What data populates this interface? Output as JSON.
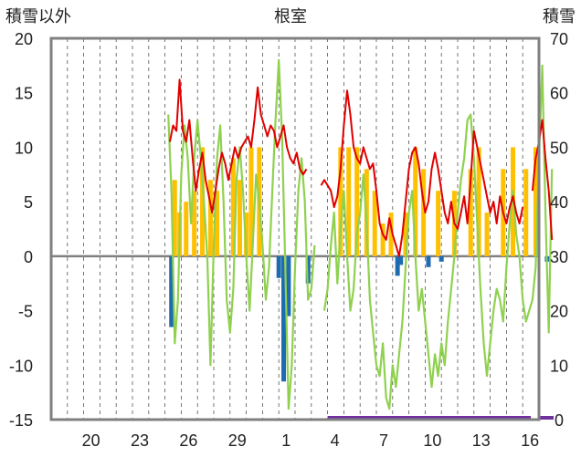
{
  "chart_data": {
    "type": "bar+line",
    "title": "根室",
    "left_axis_title": "積雪以外",
    "right_axis_title": "積雪",
    "left_axis": {
      "min": -15,
      "max": 20,
      "ticks": [
        "20",
        "15",
        "10",
        "5",
        "0",
        "-5",
        "-10",
        "-15"
      ]
    },
    "right_axis": {
      "min": 0,
      "max": 70,
      "ticks": [
        "70",
        "60",
        "50",
        "40",
        "30",
        "20",
        "10",
        "0"
      ]
    },
    "x_ticks": [
      {
        "day": 2,
        "label": "20"
      },
      {
        "day": 5,
        "label": "23"
      },
      {
        "day": 8,
        "label": "26"
      },
      {
        "day": 11,
        "label": "29"
      },
      {
        "day": 14,
        "label": "1"
      },
      {
        "day": 17,
        "label": "4"
      },
      {
        "day": 20,
        "label": "7"
      },
      {
        "day": 23,
        "label": "10"
      },
      {
        "day": 26,
        "label": "13"
      },
      {
        "day": 29,
        "label": "16"
      }
    ],
    "x_range": [
      0,
      30
    ],
    "colors": {
      "red": "#e00000",
      "green": "#8fd14f",
      "orange": "#ffc000",
      "blue": "#1e6bb0",
      "purple": "#7030a0",
      "frame": "#808080"
    },
    "series": [
      {
        "type": "line",
        "axis": "left",
        "color": "red",
        "segments": [
          [
            [
              7.3,
              10.5
            ],
            [
              7.5,
              12
            ],
            [
              7.7,
              11.5
            ],
            [
              7.9,
              16.2
            ],
            [
              8.1,
              11.5
            ],
            [
              8.3,
              10.5
            ],
            [
              8.5,
              12.5
            ],
            [
              8.7,
              9
            ],
            [
              8.9,
              6
            ],
            [
              9.1,
              8
            ],
            [
              9.3,
              9.5
            ],
            [
              9.5,
              7
            ],
            [
              9.7,
              5.5
            ],
            [
              9.9,
              4
            ],
            [
              10.1,
              6
            ],
            [
              10.3,
              8
            ],
            [
              10.5,
              9.5
            ],
            [
              10.7,
              8.5
            ],
            [
              10.9,
              7
            ],
            [
              11.1,
              8.5
            ],
            [
              11.3,
              10
            ],
            [
              11.5,
              9
            ],
            [
              11.7,
              10
            ],
            [
              11.9,
              10.5
            ],
            [
              12.1,
              11
            ],
            [
              12.3,
              10
            ],
            [
              12.5,
              12.5
            ],
            [
              12.7,
              15.5
            ],
            [
              12.9,
              13
            ],
            [
              13.1,
              12
            ],
            [
              13.3,
              11
            ],
            [
              13.5,
              12
            ],
            [
              13.7,
              11.5
            ],
            [
              13.9,
              10
            ],
            [
              14.1,
              11
            ],
            [
              14.3,
              12
            ],
            [
              14.5,
              10
            ],
            [
              14.7,
              9
            ],
            [
              14.9,
              8.5
            ],
            [
              15.1,
              9.5
            ],
            [
              15.3,
              8
            ],
            [
              15.5,
              7.5
            ],
            [
              15.7,
              8
            ]
          ],
          [
            [
              16.6,
              6.5
            ],
            [
              16.8,
              7
            ],
            [
              17.0,
              6.5
            ],
            [
              17.2,
              6
            ],
            [
              17.4,
              4.5
            ],
            [
              17.6,
              5.5
            ],
            [
              17.8,
              8
            ],
            [
              18.0,
              12
            ],
            [
              18.2,
              15.2
            ],
            [
              18.4,
              13
            ],
            [
              18.6,
              10
            ],
            [
              18.8,
              9
            ],
            [
              19.0,
              8.5
            ],
            [
              19.2,
              10
            ],
            [
              19.4,
              9
            ],
            [
              19.6,
              8
            ],
            [
              19.8,
              8.5
            ],
            [
              20.0,
              6
            ],
            [
              20.2,
              3
            ],
            [
              20.4,
              2
            ],
            [
              20.6,
              1.5
            ],
            [
              20.8,
              3.5
            ],
            [
              21.0,
              2
            ],
            [
              21.2,
              1
            ],
            [
              21.4,
              0
            ],
            [
              21.6,
              2
            ],
            [
              21.8,
              5
            ],
            [
              22.0,
              8
            ],
            [
              22.2,
              9.5
            ],
            [
              22.4,
              10
            ],
            [
              22.6,
              8.5
            ],
            [
              22.8,
              6
            ],
            [
              23.0,
              4
            ],
            [
              23.2,
              5
            ],
            [
              23.4,
              8
            ],
            [
              23.6,
              9.5
            ],
            [
              23.8,
              8
            ],
            [
              24.0,
              6
            ],
            [
              24.2,
              4
            ],
            [
              24.4,
              3
            ],
            [
              24.6,
              5
            ],
            [
              24.8,
              3
            ],
            [
              25.0,
              2.5
            ],
            [
              25.2,
              4
            ],
            [
              25.4,
              5.5
            ],
            [
              25.6,
              3
            ],
            [
              25.8,
              7
            ],
            [
              26.0,
              11.5
            ],
            [
              26.2,
              10
            ],
            [
              26.4,
              8.5
            ],
            [
              26.6,
              7
            ],
            [
              26.8,
              5.5
            ],
            [
              27.0,
              4
            ],
            [
              27.2,
              5
            ],
            [
              27.4,
              3
            ],
            [
              27.6,
              5.5
            ],
            [
              27.8,
              4
            ],
            [
              28.0,
              3
            ],
            [
              28.2,
              4.5
            ],
            [
              28.4,
              5.5
            ],
            [
              28.6,
              4
            ],
            [
              28.8,
              3
            ],
            [
              29.0,
              4.5
            ]
          ],
          [
            [
              29.6,
              6
            ],
            [
              29.8,
              9
            ],
            [
              30.0,
              10.5
            ],
            [
              30.2,
              12.5
            ],
            [
              30.4,
              9
            ],
            [
              30.6,
              6
            ],
            [
              30.8,
              1.5
            ]
          ]
        ]
      },
      {
        "type": "line",
        "axis": "right",
        "color": "green",
        "segments": [
          [
            [
              7.2,
              56
            ],
            [
              7.4,
              42
            ],
            [
              7.6,
              14
            ],
            [
              7.8,
              22
            ],
            [
              8.0,
              45
            ],
            [
              8.2,
              54
            ],
            [
              8.4,
              48
            ],
            [
              8.6,
              36
            ],
            [
              8.8,
              48
            ],
            [
              9.0,
              55
            ],
            [
              9.2,
              48
            ],
            [
              9.4,
              40
            ],
            [
              9.6,
              30
            ],
            [
              9.8,
              10
            ],
            [
              10.0,
              32
            ],
            [
              10.2,
              48
            ],
            [
              10.4,
              54
            ],
            [
              10.6,
              40
            ],
            [
              10.8,
              22
            ],
            [
              11.0,
              16
            ],
            [
              11.2,
              24
            ],
            [
              11.4,
              44
            ],
            [
              11.6,
              50
            ],
            [
              11.8,
              42
            ],
            [
              12.0,
              30
            ],
            [
              12.2,
              20
            ],
            [
              12.4,
              32
            ],
            [
              12.6,
              45
            ],
            [
              12.8,
              40
            ],
            [
              13.0,
              32
            ],
            [
              13.2,
              22
            ],
            [
              13.4,
              28
            ],
            [
              13.6,
              42
            ],
            [
              13.8,
              55
            ],
            [
              14.0,
              66
            ],
            [
              14.2,
              52
            ],
            [
              14.4,
              28
            ],
            [
              14.6,
              2
            ],
            [
              14.8,
              10
            ],
            [
              15.0,
              28
            ],
            [
              15.2,
              42
            ],
            [
              15.4,
              48
            ],
            [
              15.6,
              40
            ],
            [
              15.8,
              22
            ],
            [
              16.0,
              24
            ],
            [
              16.2,
              32
            ]
          ],
          [
            [
              16.8,
              20
            ],
            [
              17.0,
              24
            ],
            [
              17.2,
              32
            ],
            [
              17.4,
              38
            ],
            [
              17.6,
              25
            ],
            [
              17.8,
              35
            ],
            [
              18.0,
              42
            ],
            [
              18.2,
              30
            ],
            [
              18.4,
              20
            ],
            [
              18.6,
              24
            ],
            [
              18.8,
              34
            ],
            [
              19.0,
              38
            ],
            [
              19.2,
              45
            ],
            [
              19.4,
              36
            ],
            [
              19.6,
              22
            ],
            [
              19.8,
              16
            ],
            [
              20.0,
              10
            ],
            [
              20.2,
              8
            ],
            [
              20.4,
              14
            ],
            [
              20.6,
              4
            ],
            [
              20.8,
              2
            ],
            [
              21.0,
              10
            ],
            [
              21.2,
              6
            ],
            [
              21.4,
              12
            ],
            [
              21.6,
              18
            ],
            [
              21.8,
              28
            ],
            [
              22.0,
              38
            ],
            [
              22.2,
              42
            ],
            [
              22.4,
              30
            ],
            [
              22.6,
              20
            ],
            [
              22.8,
              24
            ],
            [
              23.0,
              18
            ],
            [
              23.2,
              12
            ],
            [
              23.4,
              6
            ],
            [
              23.6,
              12
            ],
            [
              23.8,
              8
            ],
            [
              24.0,
              14
            ],
            [
              24.2,
              10
            ],
            [
              24.4,
              18
            ],
            [
              24.6,
              24
            ],
            [
              24.8,
              30
            ],
            [
              25.0,
              38
            ],
            [
              25.2,
              44
            ],
            [
              25.4,
              48
            ],
            [
              25.6,
              55
            ],
            [
              25.8,
              56
            ],
            [
              26.0,
              48
            ],
            [
              26.2,
              36
            ],
            [
              26.4,
              24
            ],
            [
              26.6,
              14
            ],
            [
              26.8,
              8
            ],
            [
              27.0,
              14
            ],
            [
              27.2,
              20
            ],
            [
              27.4,
              24
            ],
            [
              27.6,
              22
            ],
            [
              27.8,
              18
            ],
            [
              28.0,
              28
            ],
            [
              28.2,
              36
            ],
            [
              28.4,
              42
            ],
            [
              28.6,
              34
            ],
            [
              28.8,
              30
            ],
            [
              29.0,
              22
            ],
            [
              29.2,
              18
            ],
            [
              29.4,
              20
            ],
            [
              29.6,
              22
            ],
            [
              29.8,
              28
            ],
            [
              30.0,
              48
            ],
            [
              30.2,
              65
            ],
            [
              30.4,
              38
            ],
            [
              30.6,
              16
            ],
            [
              30.8,
              46
            ]
          ]
        ]
      },
      {
        "type": "bar",
        "axis": "left",
        "color": "orange",
        "bars": [
          [
            7.6,
            7
          ],
          [
            7.9,
            4
          ],
          [
            8.3,
            5
          ],
          [
            8.8,
            6
          ],
          [
            9.3,
            10
          ],
          [
            9.8,
            7
          ],
          [
            10.2,
            6
          ],
          [
            11.2,
            9
          ],
          [
            11.6,
            7
          ],
          [
            12.0,
            4
          ],
          [
            12.3,
            10
          ],
          [
            12.8,
            10
          ],
          [
            17.8,
            10
          ],
          [
            18.3,
            10
          ],
          [
            18.8,
            10
          ],
          [
            19.4,
            8
          ],
          [
            19.9,
            6
          ],
          [
            20.4,
            3
          ],
          [
            20.9,
            4
          ],
          [
            21.8,
            4
          ],
          [
            22.4,
            10
          ],
          [
            22.9,
            8
          ],
          [
            23.8,
            6
          ],
          [
            24.8,
            6
          ],
          [
            25.8,
            8
          ],
          [
            26.3,
            10
          ],
          [
            26.8,
            4
          ],
          [
            27.8,
            8
          ],
          [
            28.4,
            10
          ],
          [
            29.2,
            8
          ],
          [
            29.8,
            10
          ]
        ]
      },
      {
        "type": "bar",
        "axis": "left",
        "color": "blue",
        "bars": [
          [
            7.4,
            -6.5
          ],
          [
            14.0,
            -2
          ],
          [
            14.3,
            -11.5
          ],
          [
            14.6,
            -5.5
          ],
          [
            15.8,
            -2.5
          ],
          [
            21.3,
            -1.8
          ],
          [
            21.5,
            -0.8
          ],
          [
            23.2,
            -1
          ],
          [
            24.0,
            -0.5
          ],
          [
            30.5,
            -0.5
          ]
        ]
      },
      {
        "type": "bar",
        "axis": "right",
        "color": "purple",
        "bars": [
          [
            17,
            0.5
          ],
          [
            30,
            0.5
          ]
        ]
      }
    ]
  }
}
